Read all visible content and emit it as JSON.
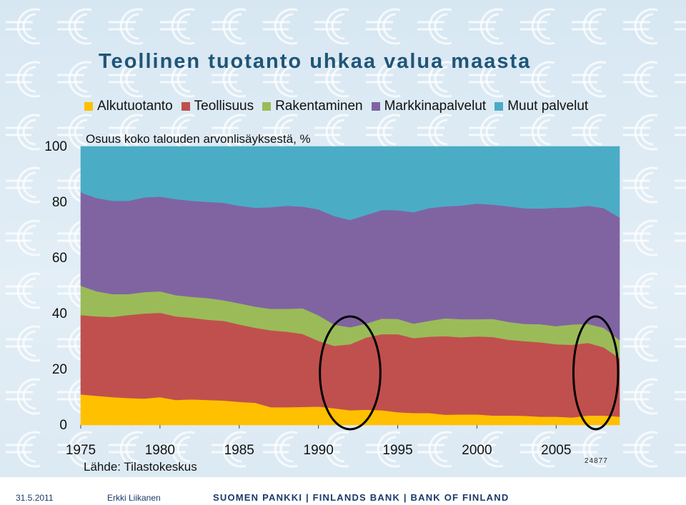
{
  "slide": {
    "title": "Teollinen tuotanto uhkaa valua maasta",
    "note_id": "24877",
    "footer_date": "31.5.2011",
    "footer_author": "Erkki Liikanen",
    "footer_org": "SUOMEN PANKKI | FINLANDS BANK | BANK OF FINLAND"
  },
  "colors": {
    "background": "#dbe9f3",
    "euro_pattern": "#ffffff",
    "title": "#1f5578",
    "highlight_ellipse": "#000000"
  },
  "chart_data": {
    "type": "area",
    "stacked": true,
    "title": "",
    "subtitle": "Osuus koko talouden arvonlisäyksestä, %",
    "xlabel": "",
    "ylabel": "",
    "source": "Lähde: Tilastokeskus",
    "xlim": [
      1975,
      2009
    ],
    "ylim": [
      0,
      100
    ],
    "x_ticks": [
      1975,
      1980,
      1985,
      1990,
      1995,
      2000,
      2005
    ],
    "y_ticks": [
      0,
      20,
      40,
      60,
      80,
      100
    ],
    "grid": false,
    "legend_position": "top",
    "highlighted_periods": [
      [
        1990,
        1994
      ],
      [
        2006,
        2009
      ]
    ],
    "x": [
      1975,
      1976,
      1977,
      1978,
      1979,
      1980,
      1981,
      1982,
      1983,
      1984,
      1985,
      1986,
      1987,
      1988,
      1989,
      1990,
      1991,
      1992,
      1993,
      1994,
      1995,
      1996,
      1997,
      1998,
      1999,
      2000,
      2001,
      2002,
      2003,
      2004,
      2005,
      2006,
      2007,
      2008,
      2009
    ],
    "series": [
      {
        "name": "Alkutuotanto",
        "color": "#ffc000",
        "values": [
          11,
          10.5,
          10,
          9.7,
          9.5,
          10,
          9,
          9.2,
          9,
          8.8,
          8.3,
          8,
          6.4,
          6.4,
          6.5,
          6.6,
          6,
          5.3,
          5.5,
          5.3,
          4.6,
          4.3,
          4.3,
          3.7,
          3.8,
          3.8,
          3.4,
          3.4,
          3.3,
          3,
          3,
          2.7,
          3.4,
          3.4,
          3
        ]
      },
      {
        "name": "Teollisuus",
        "color": "#c0504d",
        "values": [
          28.5,
          28.5,
          28.8,
          29.8,
          30.5,
          30.3,
          30,
          29.3,
          28.8,
          28.6,
          27.8,
          26.9,
          27.6,
          27.1,
          26.2,
          23.6,
          22.4,
          23.7,
          25.9,
          27.3,
          28,
          26.9,
          27.4,
          28.2,
          27.7,
          28,
          28.2,
          27.2,
          26.8,
          26.7,
          26,
          26.1,
          26.1,
          24.5,
          21
        ]
      },
      {
        "name": "Rakentaminen",
        "color": "#9bbb59",
        "values": [
          10.5,
          9,
          8.2,
          7.5,
          7.7,
          7.7,
          7.6,
          7.5,
          7.8,
          7.4,
          7.6,
          7.6,
          7.7,
          8.2,
          9.2,
          9.2,
          7.6,
          6.1,
          5,
          5.6,
          5.5,
          5.2,
          5.7,
          6.4,
          6.5,
          6.2,
          6.5,
          6.4,
          6.2,
          6.5,
          6.5,
          7.3,
          6.8,
          7,
          6.5
        ]
      },
      {
        "name": "Markkinapalvelut",
        "color": "#8064a2",
        "values": [
          33.5,
          33.5,
          33.5,
          33.5,
          34,
          34,
          34.5,
          34.5,
          34.5,
          35,
          35,
          35.5,
          36.5,
          37,
          36.5,
          38,
          39,
          38.5,
          39,
          39,
          39,
          40,
          40.5,
          40.2,
          40.8,
          41.5,
          41,
          41.5,
          41.5,
          41.5,
          42.5,
          42,
          42.4,
          43,
          44
        ]
      },
      {
        "name": "Muut palvelut",
        "color": "#4bacc6",
        "values": [
          16.5,
          18.5,
          19.5,
          19.5,
          18.3,
          18,
          18.9,
          19.5,
          19.9,
          20.2,
          21.3,
          22,
          21.8,
          21.3,
          21.6,
          22.6,
          25,
          26.4,
          24.6,
          22.8,
          22.9,
          23.6,
          22.1,
          21.5,
          21.2,
          20.5,
          20.9,
          21.5,
          22.2,
          22.3,
          22,
          21.9,
          21.3,
          22.1,
          25.5
        ]
      }
    ]
  }
}
